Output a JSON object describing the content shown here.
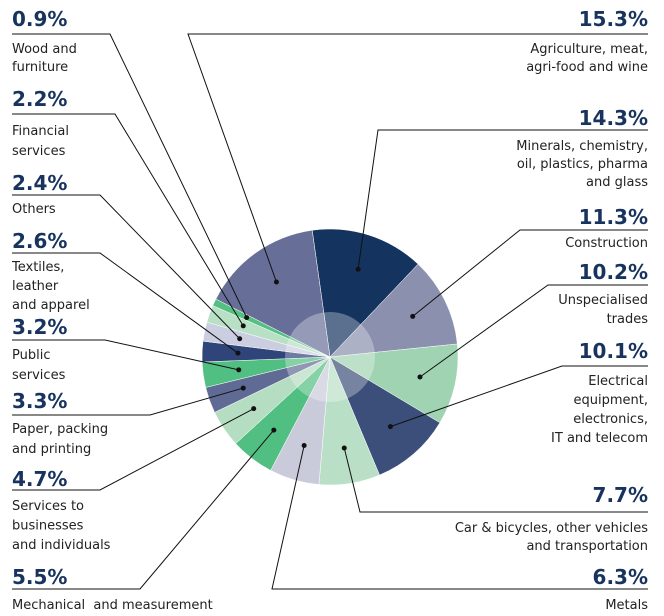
{
  "chart_data": {
    "type": "pie",
    "categories": [
      "Minerals, chemistry,\noil, plastics, pharma\nand glass",
      "Construction",
      "Unspecialised\ntrades",
      "Electrical\nequipment,\nelectronics,\nIT and telecom",
      "Car & bicycles, other vehicles\nand transportation",
      "Metals",
      "Mechanical  and measurement",
      "Services to\nbusinesses\nand individuals",
      "Paper, packing\nand printing",
      "Public\nservices",
      "Textiles,\nleather\nand apparel",
      "Others",
      "Financial\nservices",
      "Wood and\nfurniture",
      "Agriculture, meat,\nagri-food and wine"
    ],
    "values": [
      14.3,
      11.3,
      10.2,
      10.1,
      7.7,
      6.3,
      5.5,
      4.7,
      3.3,
      3.2,
      2.6,
      2.4,
      2.2,
      0.9,
      15.3
    ],
    "value_labels": [
      "14.3%",
      "11.3%",
      "10.2%",
      "10.1%",
      "7.7%",
      "6.3%",
      "5.5%",
      "4.7%",
      "3.3%",
      "3.2%",
      "2.6%",
      "2.4%",
      "2.2%",
      "0.9%",
      "15.3%"
    ],
    "colors": [
      "#14335e",
      "#8a90ad",
      "#9fd3b1",
      "#3b4f7a",
      "#b9e0c6",
      "#c9cbda",
      "#52bf82",
      "#b5ddc1",
      "#5f6b95",
      "#52bf82",
      "#2f4478",
      "#cbcde0",
      "#b8e0c5",
      "#55c083",
      "#676f99"
    ]
  }
}
